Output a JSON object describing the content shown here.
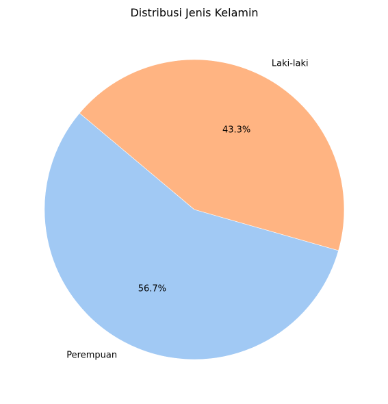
{
  "chart_data": {
    "type": "pie",
    "title": "Distribusi Jenis Kelamin",
    "slices": [
      {
        "label": "Perempuan",
        "percent_label": "56.7%",
        "value": 56.7,
        "color": "#a1c9f4"
      },
      {
        "label": "Laki-laki",
        "percent_label": "43.3%",
        "value": 43.3,
        "color": "#ffb482"
      }
    ],
    "start_angle_deg": 140,
    "direction": "counterclockwise",
    "legend": "none"
  }
}
